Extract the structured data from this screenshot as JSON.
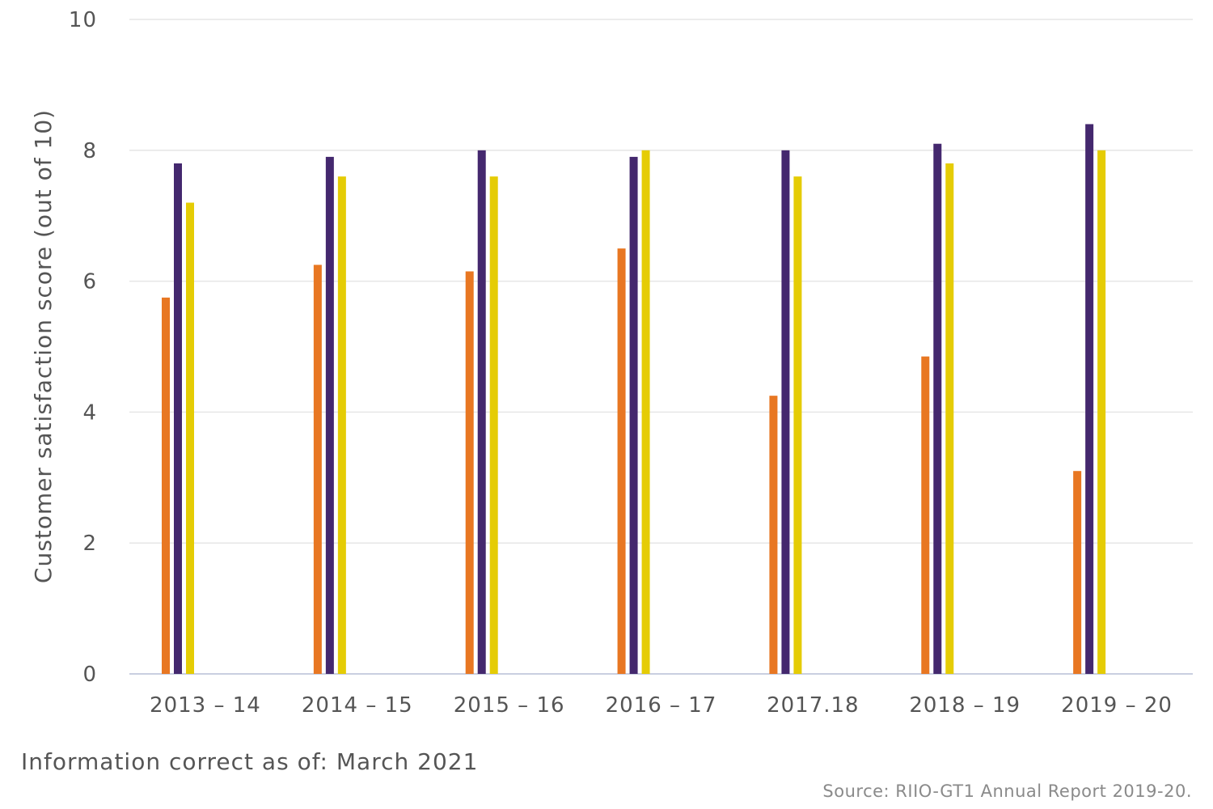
{
  "chart_data": {
    "type": "bar",
    "categories": [
      "2013 – 14",
      "2014 – 15",
      "2015 – 16",
      "2016 – 17",
      "2017.18",
      "2018 – 19",
      "2019 – 20"
    ],
    "series": [
      {
        "values": [
          5.75,
          6.25,
          6.15,
          6.5,
          4.25,
          4.85,
          3.1
        ],
        "color": "#e87722"
      },
      {
        "values": [
          7.8,
          7.9,
          8.0,
          7.9,
          8.0,
          8.1,
          8.4
        ],
        "color": "#44286e"
      },
      {
        "values": [
          7.2,
          7.6,
          7.6,
          8.0,
          7.6,
          7.8,
          8.0
        ],
        "color": "#e5cc05"
      }
    ],
    "ylabel": "Customer satisfaction score (out of 10)",
    "ylim": [
      0,
      10
    ],
    "yticks": [
      0,
      2,
      4,
      6,
      8,
      10
    ],
    "grid": true
  },
  "footer": {
    "note": "Information correct as of: March 2021",
    "source": "Source: RIIO-GT1 Annual Report 2019-20."
  }
}
